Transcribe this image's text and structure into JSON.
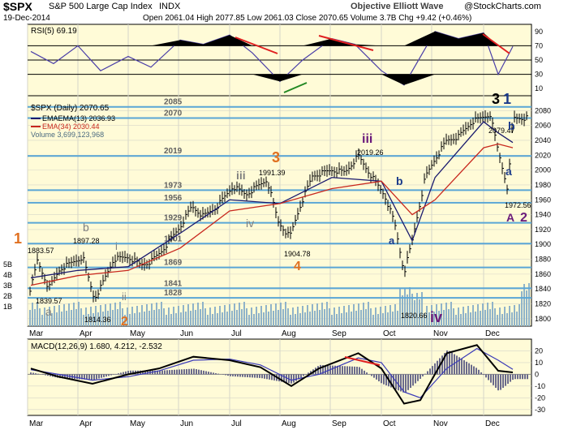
{
  "header": {
    "symbol": "$SPX",
    "name": "S&P 500 Large Cap Index",
    "exchange": "INDX",
    "date": "19-Dec-2014",
    "ohlc": "Open 2061.04  High 2077.85  Low 2061.03  Close 2070.65  Volume 3.7B  Chg +9.42 (+0.46%)",
    "watermark": "Objective Elliott Wave",
    "copyright": "@StockCharts.com"
  },
  "colors": {
    "panel_bg": "#fffbd7",
    "grid": "#d6d6c8",
    "rsi_line": "#4b3fa8",
    "ema13": "#1a1a6e",
    "ema34": "#c8281e",
    "volume": "#8fb3c9",
    "macd_line": "#000000",
    "signal_line": "#3a3ab8",
    "hist": "#6b6b8c",
    "fib_line": "#5aa6d6",
    "divergence": "#e02020",
    "divergence_up": "#228822",
    "wave_orange": "#e07020",
    "wave_purple": "#6a1a7a",
    "wave_blue": "#1a3a8a",
    "wave_gray": "#808080"
  },
  "chart_data": [
    {
      "type": "line",
      "panel": "rsi",
      "legend": "RSI(5) 69.19",
      "ylim": [
        0,
        100
      ],
      "y_ticks": [
        10,
        30,
        50,
        70,
        90
      ],
      "reference_lines": [
        30,
        50,
        70
      ],
      "x": [
        "Mar 3",
        "Mar 17",
        "Apr 1",
        "Apr 15",
        "May 1",
        "May 15",
        "Jun 2",
        "Jun 16",
        "Jul 1",
        "Jul 15",
        "Aug 1",
        "Aug 15",
        "Sep 2",
        "Sep 16",
        "Oct 1",
        "Oct 15",
        "Nov 3",
        "Nov 17",
        "Dec 1",
        "Dec 10",
        "Dec 19"
      ],
      "values": [
        62,
        45,
        70,
        35,
        55,
        40,
        78,
        72,
        85,
        60,
        20,
        50,
        80,
        72,
        35,
        15,
        90,
        80,
        88,
        30,
        69
      ]
    },
    {
      "type": "line",
      "panel": "price",
      "title": "$SPX (Daily) 2070.65",
      "series": [
        {
          "name": "EMA(13) 2036.93",
          "x": [
            "Mar 3",
            "Apr 1",
            "May 1",
            "Jun 2",
            "Jul 1",
            "Aug 1",
            "Sep 2",
            "Oct 1",
            "Oct 20",
            "Nov 3",
            "Dec 1",
            "Dec 10",
            "Dec 19"
          ],
          "values": [
            1855,
            1865,
            1870,
            1915,
            1960,
            1955,
            1990,
            1985,
            1905,
            1990,
            2065,
            2050,
            2037
          ]
        },
        {
          "name": "EMA(34) 2030.44",
          "x": [
            "Mar 3",
            "Apr 1",
            "May 1",
            "Jun 2",
            "Jul 1",
            "Aug 1",
            "Sep 2",
            "Oct 1",
            "Oct 20",
            "Nov 3",
            "Dec 1",
            "Dec 10",
            "Dec 19"
          ],
          "values": [
            1845,
            1858,
            1865,
            1895,
            1945,
            1955,
            1975,
            1985,
            1940,
            1960,
            2030,
            2035,
            2030
          ]
        }
      ],
      "close": {
        "x": [
          "Mar 3",
          "Mar 7",
          "Mar 14",
          "Mar 21",
          "Apr 4",
          "Apr 11",
          "Apr 15",
          "Apr 23",
          "May 1",
          "May 9",
          "May 15",
          "May 22",
          "Jun 2",
          "Jun 9",
          "Jun 16",
          "Jun 24",
          "Jul 3",
          "Jul 11",
          "Jul 24",
          "Jul 31",
          "Aug 7",
          "Aug 14",
          "Aug 21",
          "Sep 2",
          "Sep 10",
          "Sep 18",
          "Sep 25",
          "Oct 3",
          "Oct 9",
          "Oct 15",
          "Oct 20",
          "Oct 28",
          "Nov 3",
          "Nov 10",
          "Nov 17",
          "Nov 25",
          "Dec 5",
          "Dec 10",
          "Dec 16",
          "Dec 19"
        ],
        "values": [
          1840,
          1878,
          1841,
          1867,
          1883,
          1827,
          1842,
          1880,
          1883,
          1872,
          1877,
          1892,
          1924,
          1951,
          1938,
          1950,
          1978,
          1967,
          1987,
          1930,
          1910,
          1955,
          1992,
          2000,
          1997,
          2019,
          1995,
          1966,
          1930,
          1862,
          1905,
          1990,
          2015,
          2040,
          2045,
          2065,
          2075,
          2025,
          1973,
          2070
        ]
      },
      "ylim": [
        1790,
        2100
      ],
      "y_ticks": [
        1800,
        1820,
        1840,
        1860,
        1880,
        1900,
        1920,
        1940,
        1960,
        1980,
        2000,
        2020,
        2040,
        2060,
        2080
      ],
      "fib_levels": [
        2085,
        2070,
        2019,
        1973,
        1956,
        1929,
        1901,
        1869,
        1841,
        1828
      ],
      "annotations": [
        {
          "text": "1883.57"
        },
        {
          "text": "1839.57"
        },
        {
          "text": "1897.28"
        },
        {
          "text": "1814.36"
        },
        {
          "text": "1991.39"
        },
        {
          "text": "1904.78"
        },
        {
          "text": "2019.26"
        },
        {
          "text": "1820.66"
        },
        {
          "text": "2079.47"
        },
        {
          "text": "1972.56"
        }
      ]
    },
    {
      "type": "bar",
      "panel": "volume",
      "legend": "Volume 3,699,123,968",
      "y_ticks": [
        "1B",
        "2B",
        "3B",
        "4B",
        "5B"
      ]
    },
    {
      "type": "line",
      "panel": "macd",
      "legend": "MACD(12,26,9) 1.680, 4.212, -2.532",
      "ylim": [
        -35,
        30
      ],
      "y_ticks": [
        -30,
        -20,
        -10,
        0,
        10,
        20
      ],
      "x": [
        "Mar 3",
        "Mar 20",
        "Apr 10",
        "May 1",
        "May 20",
        "Jun 10",
        "Jul 1",
        "Jul 20",
        "Aug 8",
        "Aug 25",
        "Sep 18",
        "Oct 1",
        "Oct 15",
        "Oct 25",
        "Nov 10",
        "Nov 28",
        "Dec 10",
        "Dec 19"
      ],
      "series": [
        {
          "name": "MACD",
          "values": [
            5,
            -2,
            -8,
            0,
            5,
            15,
            12,
            6,
            -10,
            5,
            18,
            5,
            -25,
            -22,
            18,
            25,
            3,
            1.68
          ]
        },
        {
          "name": "Signal",
          "values": [
            4,
            0,
            -5,
            -2,
            3,
            12,
            13,
            8,
            -5,
            0,
            14,
            10,
            -15,
            -20,
            5,
            22,
            12,
            4.21
          ]
        }
      ]
    }
  ],
  "x_axis_months": [
    "Mar",
    "Apr",
    "May",
    "Jun",
    "Jul",
    "Aug",
    "Sep",
    "Oct",
    "Nov",
    "Dec"
  ],
  "wave_labels": [
    {
      "id": "w1",
      "text": "1",
      "color": "wave_orange"
    },
    {
      "id": "wa",
      "text": "a",
      "color": "wave_gray"
    },
    {
      "id": "wb",
      "text": "b",
      "color": "wave_gray"
    },
    {
      "id": "wi",
      "text": "i",
      "color": "wave_gray"
    },
    {
      "id": "w2",
      "text": "2",
      "color": "wave_orange"
    },
    {
      "id": "wii",
      "text": "ii",
      "color": "wave_gray"
    },
    {
      "id": "wiii",
      "text": "iii",
      "color": "wave_gray"
    },
    {
      "id": "wiv",
      "text": "iv",
      "color": "wave_gray"
    },
    {
      "id": "w3",
      "text": "3",
      "color": "wave_orange"
    },
    {
      "id": "w4",
      "text": "4",
      "color": "wave_orange"
    },
    {
      "id": "wIII",
      "text": "iii",
      "color": "wave_purple"
    },
    {
      "id": "wb2",
      "text": "b",
      "color": "wave_blue"
    },
    {
      "id": "wa2",
      "text": "a",
      "color": "wave_blue"
    },
    {
      "id": "wIV",
      "text": "iv",
      "color": "wave_purple"
    },
    {
      "id": "w31a",
      "text": "3",
      "color": "#000000"
    },
    {
      "id": "w31b",
      "text": "1",
      "color": "wave_blue"
    },
    {
      "id": "wb3",
      "text": "b",
      "color": "wave_blue"
    },
    {
      "id": "wa3",
      "text": "a",
      "color": "wave_blue"
    },
    {
      "id": "wA",
      "text": "A",
      "color": "wave_purple"
    },
    {
      "id": "w22",
      "text": "2",
      "color": "wave_purple"
    }
  ]
}
